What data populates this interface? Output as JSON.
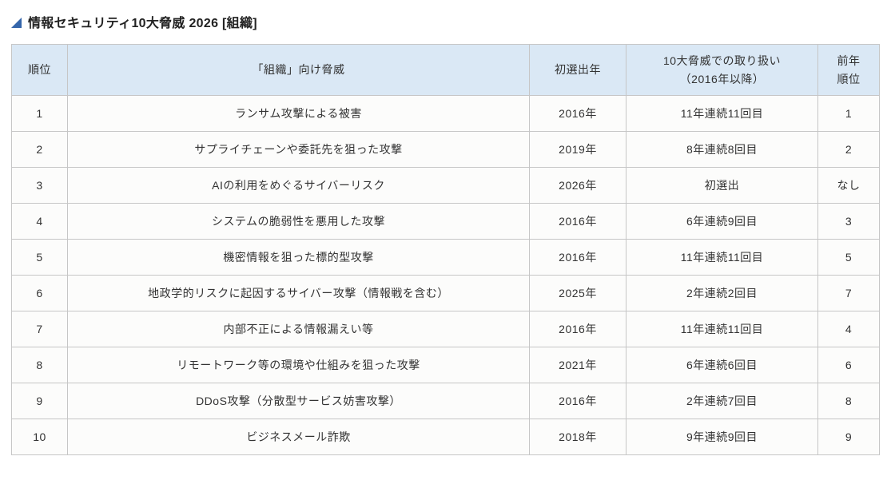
{
  "page": {
    "title": "情報セキュリティ10大脅威 2026 [組織]"
  },
  "icons": {
    "title_marker": "lower-right-triangle"
  },
  "colors": {
    "header_bg": "#dae8f5",
    "cell_bg": "#fcfcfb",
    "border": "#c6c6c6",
    "text": "#333333",
    "highlight_text": "#df4030",
    "title_marker_blue": "#3566ab"
  },
  "table": {
    "headers": {
      "rank": "順位",
      "threat": "「組織」向け脅威",
      "first_year": "初選出年",
      "treatment_line1": "10大脅威での取り扱い",
      "treatment_line2": "（2016年以降）",
      "prev_rank_line1": "前年",
      "prev_rank_line2": "順位"
    },
    "rows": [
      {
        "rank": "1",
        "threat": "ランサム攻撃による被害",
        "first_year": "2016年",
        "treatment": "11年連続11回目",
        "prev_rank": "1",
        "highlight": false
      },
      {
        "rank": "2",
        "threat": "サプライチェーンや委託先を狙った攻撃",
        "first_year": "2019年",
        "treatment": "8年連続8回目",
        "prev_rank": "2",
        "highlight": false
      },
      {
        "rank": "3",
        "threat": "AIの利用をめぐるサイバーリスク",
        "first_year": "2026年",
        "treatment": "初選出",
        "prev_rank": "なし",
        "highlight": true
      },
      {
        "rank": "4",
        "threat": "システムの脆弱性を悪用した攻撃",
        "first_year": "2016年",
        "treatment": "6年連続9回目",
        "prev_rank": "3",
        "highlight": false
      },
      {
        "rank": "5",
        "threat": "機密情報を狙った標的型攻撃",
        "first_year": "2016年",
        "treatment": "11年連続11回目",
        "prev_rank": "5",
        "highlight": false
      },
      {
        "rank": "6",
        "threat": "地政学的リスクに起因するサイバー攻撃（情報戦を含む）",
        "first_year": "2025年",
        "treatment": "2年連続2回目",
        "prev_rank": "7",
        "highlight": false
      },
      {
        "rank": "7",
        "threat": "内部不正による情報漏えい等",
        "first_year": "2016年",
        "treatment": "11年連続11回目",
        "prev_rank": "4",
        "highlight": false
      },
      {
        "rank": "8",
        "threat": "リモートワーク等の環境や仕組みを狙った攻撃",
        "first_year": "2021年",
        "treatment": "6年連続6回目",
        "prev_rank": "6",
        "highlight": false
      },
      {
        "rank": "9",
        "threat": "DDoS攻撃（分散型サービス妨害攻撃）",
        "first_year": "2016年",
        "treatment": "2年連続7回目",
        "prev_rank": "8",
        "highlight": false
      },
      {
        "rank": "10",
        "threat": "ビジネスメール詐欺",
        "first_year": "2018年",
        "treatment": "9年連続9回目",
        "prev_rank": "9",
        "highlight": false
      }
    ]
  }
}
